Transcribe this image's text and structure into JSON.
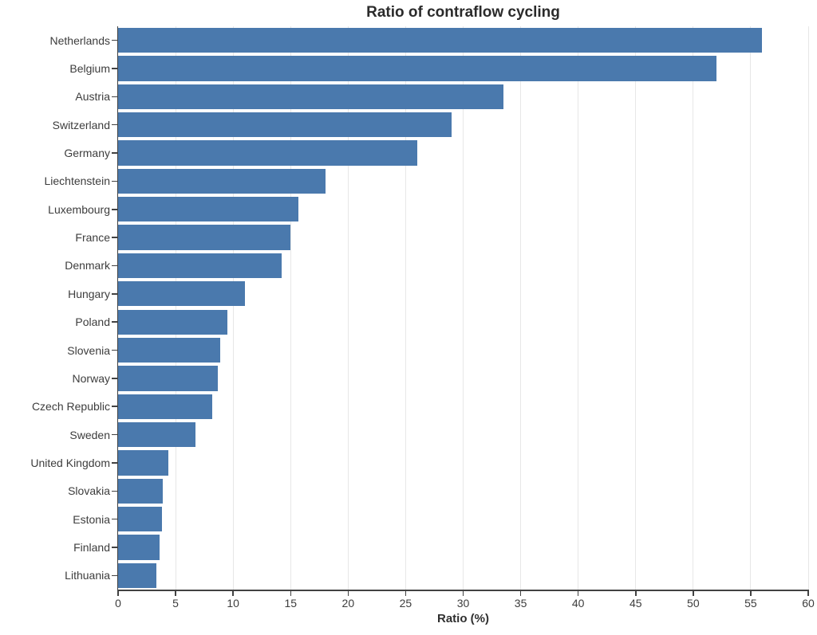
{
  "chart_data": {
    "type": "bar",
    "orientation": "horizontal",
    "title": "Ratio of contraflow cycling",
    "xlabel": "Ratio (%)",
    "ylabel": "",
    "categories": [
      "Netherlands",
      "Belgium",
      "Austria",
      "Switzerland",
      "Germany",
      "Liechtenstein",
      "Luxembourg",
      "France",
      "Denmark",
      "Hungary",
      "Poland",
      "Slovenia",
      "Norway",
      "Czech Republic",
      "Sweden",
      "United Kingdom",
      "Slovakia",
      "Estonia",
      "Finland",
      "Lithuania"
    ],
    "values": [
      56,
      52,
      33.5,
      29,
      26,
      18,
      15.7,
      15,
      14.2,
      11,
      9.5,
      8.9,
      8.7,
      8.2,
      6.7,
      4.4,
      3.9,
      3.8,
      3.6,
      3.3
    ],
    "xlim": [
      0,
      60
    ],
    "xticks": [
      0,
      5,
      10,
      15,
      20,
      25,
      30,
      35,
      40,
      45,
      50,
      55,
      60
    ],
    "grid": true,
    "legend": "none",
    "bar_color": "#4a79ad",
    "grid_color": "#e7e7e7",
    "axis_color": "#424242",
    "text_color": "#3d3d3d"
  }
}
